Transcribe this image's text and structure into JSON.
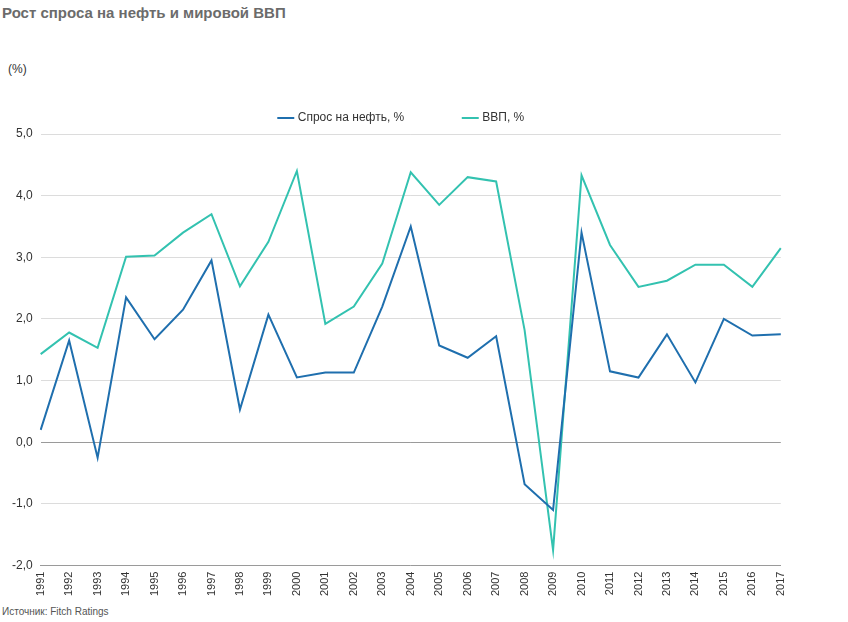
{
  "chart_data": {
    "type": "line",
    "title": "Рост спроса на нефть и мировой ВВП",
    "ylabel": "(%)",
    "source": "Источник: Fitch Ratings",
    "categories": [
      "1991",
      "1992",
      "1993",
      "1994",
      "1995",
      "1996",
      "1997",
      "1998",
      "1999",
      "2000",
      "2001",
      "2002",
      "2003",
      "2004",
      "2005",
      "2006",
      "2007",
      "2008",
      "2009",
      "2010",
      "2011",
      "2012",
      "2013",
      "2014",
      "2015",
      "2016",
      "2017"
    ],
    "series": [
      {
        "name": "Спрос на нефть, %",
        "color": "#1f6fae",
        "values": [
          0.2,
          1.65,
          -0.25,
          2.35,
          1.67,
          2.15,
          2.95,
          0.53,
          2.07,
          1.05,
          1.13,
          1.13,
          2.2,
          3.5,
          1.57,
          1.37,
          1.72,
          -0.68,
          -1.1,
          3.4,
          1.15,
          1.05,
          1.75,
          0.97,
          2.0,
          1.73,
          1.75
        ]
      },
      {
        "name": "ВВП, %",
        "color": "#33c2b0",
        "values": [
          1.43,
          1.78,
          1.53,
          3.01,
          3.03,
          3.4,
          3.7,
          2.53,
          3.25,
          4.4,
          1.92,
          2.2,
          2.9,
          4.38,
          3.85,
          4.3,
          4.23,
          1.82,
          -1.75,
          4.33,
          3.2,
          2.52,
          2.62,
          2.88,
          2.88,
          2.52,
          3.15
        ]
      }
    ],
    "ylim": [
      -2,
      5
    ],
    "yticks": [
      {
        "value": -2,
        "label": "-2,0"
      },
      {
        "value": -1,
        "label": "-1,0"
      },
      {
        "value": 0,
        "label": "0,0"
      },
      {
        "value": 1,
        "label": "1,0"
      },
      {
        "value": 2,
        "label": "2,0"
      },
      {
        "value": 3,
        "label": "3,0"
      },
      {
        "value": 4,
        "label": "4,0"
      },
      {
        "value": 5,
        "label": "5,0"
      }
    ],
    "grid": true,
    "legend": "top"
  }
}
